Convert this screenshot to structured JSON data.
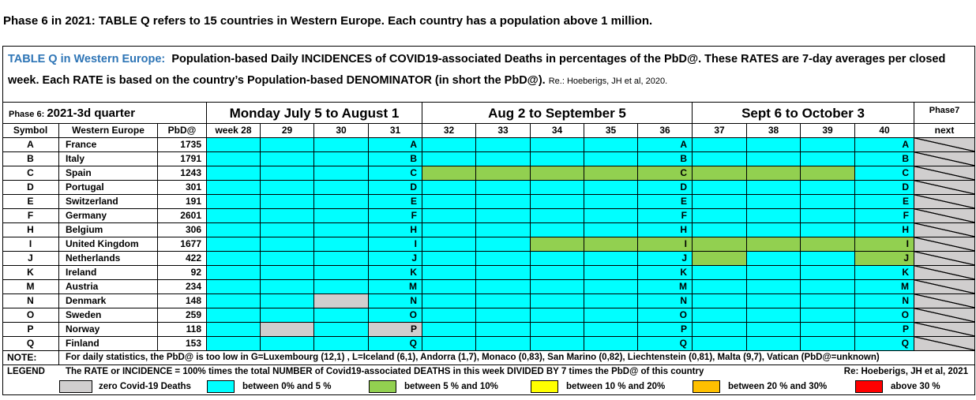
{
  "header": {
    "intro": "Phase 6 in 2021:  TABLE Q  refers to 15 countries in Western Europe. Each country has a population above 1 million.",
    "title_lead": "TABLE Q in Western Europe:",
    "title_text": "Population-based Daily INCIDENCES of COVID19-associated Deaths in percentages of the PbD@. These RATES are 7-day averages per closed week. Each RATE is based on the country’s Population-based DENOMINATOR (in short the PbD@).",
    "title_ref": "Re.: Hoeberigs, JH  et al, 2020."
  },
  "table": {
    "phase": "Phase 6:",
    "quarter": "2021-3d quarter",
    "periods": [
      "Monday July 5 to August 1",
      "Aug 2 to September 5",
      "Sept 6 to October 3"
    ],
    "phase7": "Phase7",
    "columns": [
      "Symbol",
      "Western Europe",
      "PbD@",
      "week 28",
      "29",
      "30",
      "31",
      "32",
      "33",
      "34",
      "35",
      "36",
      "37",
      "38",
      "39",
      "40",
      "next"
    ],
    "rows": [
      {
        "symbol": "A",
        "country": "France",
        "pbd": "1735",
        "cells": [
          "#00ffff",
          "#00ffff",
          "#00ffff",
          "#00ffff",
          "#00ffff",
          "#00ffff",
          "#00ffff",
          "#00ffff",
          "#00ffff",
          "#00ffff",
          "#00ffff",
          "#00ffff",
          "#00ffff"
        ]
      },
      {
        "symbol": "B",
        "country": "Italy",
        "pbd": "1791",
        "cells": [
          "#00ffff",
          "#00ffff",
          "#00ffff",
          "#00ffff",
          "#00ffff",
          "#00ffff",
          "#00ffff",
          "#00ffff",
          "#00ffff",
          "#00ffff",
          "#00ffff",
          "#00ffff",
          "#00ffff"
        ]
      },
      {
        "symbol": "C",
        "country": "Spain",
        "pbd": "1243",
        "cells": [
          "#00ffff",
          "#00ffff",
          "#00ffff",
          "#00ffff",
          "#92d050",
          "#92d050",
          "#92d050",
          "#92d050",
          "#92d050",
          "#92d050",
          "#92d050",
          "#92d050",
          "#00ffff"
        ]
      },
      {
        "symbol": "D",
        "country": "Portugal",
        "pbd": "301",
        "cells": [
          "#00ffff",
          "#00ffff",
          "#00ffff",
          "#00ffff",
          "#00ffff",
          "#00ffff",
          "#00ffff",
          "#00ffff",
          "#00ffff",
          "#00ffff",
          "#00ffff",
          "#00ffff",
          "#00ffff"
        ]
      },
      {
        "symbol": "E",
        "country": "Switzerland",
        "pbd": "191",
        "cells": [
          "#00ffff",
          "#00ffff",
          "#00ffff",
          "#00ffff",
          "#00ffff",
          "#00ffff",
          "#00ffff",
          "#00ffff",
          "#00ffff",
          "#00ffff",
          "#00ffff",
          "#00ffff",
          "#00ffff"
        ]
      },
      {
        "symbol": "F",
        "country": "Germany",
        "pbd": "2601",
        "cells": [
          "#00ffff",
          "#00ffff",
          "#00ffff",
          "#00ffff",
          "#00ffff",
          "#00ffff",
          "#00ffff",
          "#00ffff",
          "#00ffff",
          "#00ffff",
          "#00ffff",
          "#00ffff",
          "#00ffff"
        ]
      },
      {
        "symbol": "H",
        "country": "Belgium",
        "pbd": "306",
        "cells": [
          "#00ffff",
          "#00ffff",
          "#00ffff",
          "#00ffff",
          "#00ffff",
          "#00ffff",
          "#00ffff",
          "#00ffff",
          "#00ffff",
          "#00ffff",
          "#00ffff",
          "#00ffff",
          "#00ffff"
        ]
      },
      {
        "symbol": "I",
        "country": "United Kingdom",
        "pbd": "1677",
        "cells": [
          "#00ffff",
          "#00ffff",
          "#00ffff",
          "#00ffff",
          "#00ffff",
          "#00ffff",
          "#92d050",
          "#92d050",
          "#92d050",
          "#92d050",
          "#92d050",
          "#92d050",
          "#92d050"
        ]
      },
      {
        "symbol": "J",
        "country": "Netherlands",
        "pbd": "422",
        "cells": [
          "#00ffff",
          "#00ffff",
          "#00ffff",
          "#00ffff",
          "#00ffff",
          "#00ffff",
          "#00ffff",
          "#00ffff",
          "#00ffff",
          "#92d050",
          "#00ffff",
          "#00ffff",
          "#92d050"
        ]
      },
      {
        "symbol": "K",
        "country": "Ireland",
        "pbd": "92",
        "cells": [
          "#00ffff",
          "#00ffff",
          "#00ffff",
          "#00ffff",
          "#00ffff",
          "#00ffff",
          "#00ffff",
          "#00ffff",
          "#00ffff",
          "#00ffff",
          "#00ffff",
          "#00ffff",
          "#00ffff"
        ]
      },
      {
        "symbol": "M",
        "country": "Austria",
        "pbd": "234",
        "cells": [
          "#00ffff",
          "#00ffff",
          "#00ffff",
          "#00ffff",
          "#00ffff",
          "#00ffff",
          "#00ffff",
          "#00ffff",
          "#00ffff",
          "#00ffff",
          "#00ffff",
          "#00ffff",
          "#00ffff"
        ]
      },
      {
        "symbol": "N",
        "country": "Denmark",
        "pbd": "148",
        "cells": [
          "#00ffff",
          "#00ffff",
          "#d0cece",
          "#00ffff",
          "#00ffff",
          "#00ffff",
          "#00ffff",
          "#00ffff",
          "#00ffff",
          "#00ffff",
          "#00ffff",
          "#00ffff",
          "#00ffff"
        ]
      },
      {
        "symbol": "O",
        "country": "Sweden",
        "pbd": "259",
        "cells": [
          "#00ffff",
          "#00ffff",
          "#00ffff",
          "#00ffff",
          "#00ffff",
          "#00ffff",
          "#00ffff",
          "#00ffff",
          "#00ffff",
          "#00ffff",
          "#00ffff",
          "#00ffff",
          "#00ffff"
        ]
      },
      {
        "symbol": "P",
        "country": "Norway",
        "pbd": "118",
        "cells": [
          "#00ffff",
          "#d0cece",
          "#00ffff",
          "#d0cece",
          "#00ffff",
          "#00ffff",
          "#00ffff",
          "#00ffff",
          "#00ffff",
          "#00ffff",
          "#00ffff",
          "#00ffff",
          "#00ffff"
        ]
      },
      {
        "symbol": "Q",
        "country": "Finland",
        "pbd": "153",
        "cells": [
          "#00ffff",
          "#00ffff",
          "#00ffff",
          "#00ffff",
          "#00ffff",
          "#00ffff",
          "#00ffff",
          "#00ffff",
          "#00ffff",
          "#00ffff",
          "#00ffff",
          "#00ffff",
          "#00ffff"
        ]
      }
    ]
  },
  "note": {
    "label": "NOTE:",
    "text": "For daily statistics, the PbD@ is too low in G=Luxembourg (12,1) , L=Iceland (6,1), Andorra (1,7), Monaco (0,83), San Marino (0,82), Liechtenstein (0,81), Malta (9,7), Vatican (PbD@=unknown)"
  },
  "legend": {
    "label": "LEGEND",
    "text": "The RATE or INCIDENCE = 100% times the total NUMBER of Covid19-associated DEATHS in this week DIVIDED BY 7 times the PbD@ of this country",
    "ref": "Re: Hoeberigs, JH  et al, 2021",
    "items": [
      {
        "color": "#d0cece",
        "label": "zero Covid-19 Deaths"
      },
      {
        "color": "#00ffff",
        "label": "between 0% and 5 %"
      },
      {
        "color": "#92d050",
        "label": "between 5 % and 10%"
      },
      {
        "color": "#ffff00",
        "label": "between 10 % and 20%"
      },
      {
        "color": "#ffc000",
        "label": "between 20 % and 30%"
      },
      {
        "color": "#ff0000",
        "label": "above 30 %"
      }
    ]
  }
}
